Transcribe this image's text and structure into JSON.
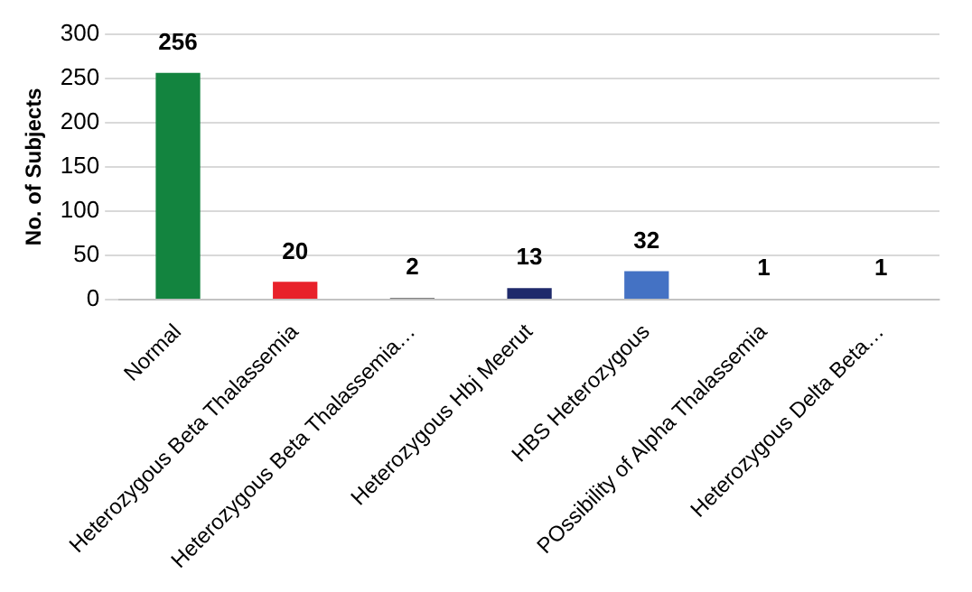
{
  "chart_data": {
    "type": "bar",
    "ylabel": "No. of Subjects",
    "categories": [
      "Normal",
      "Heterozygous Beta Thalassemia",
      "Heterozygous Beta Thalassemia…",
      "Heterozygous Hbj Meerut",
      "HBS Heterozygous",
      "POssibility of Alpha Thalassemia",
      "Heterozygous Delta Beta…"
    ],
    "values": [
      256,
      20,
      2,
      13,
      32,
      1,
      1
    ],
    "colors": [
      "#13843f",
      "#e8212a",
      "#7f7f7f",
      "#1f2a6b",
      "#4472c4",
      "#a5a5a5",
      "#5b9bd5"
    ],
    "ylim": [
      0,
      300
    ],
    "yticks": [
      0,
      50,
      100,
      150,
      200,
      250,
      300
    ],
    "grid": "y",
    "data_labels": true,
    "legend": false
  }
}
